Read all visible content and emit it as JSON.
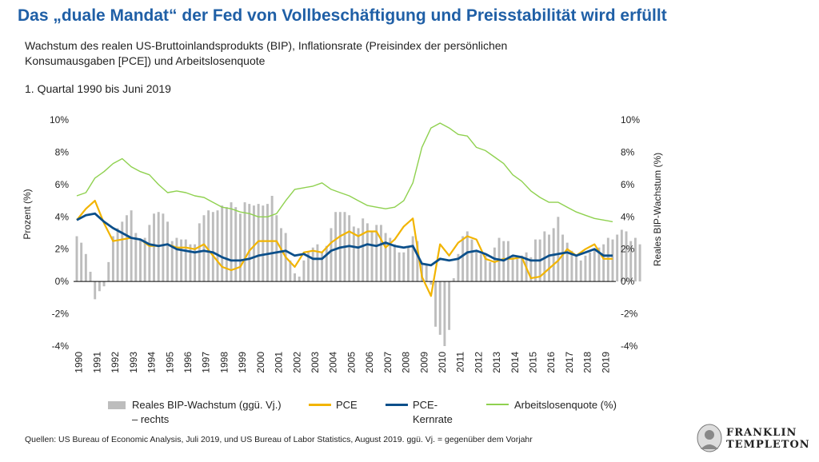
{
  "title": "Das „duale Mandat“ der Fed von Vollbeschäftigung und Preisstabilität wird erfüllt",
  "subtitle": "Wachstum des realen US-Bruttoinlandsprodukts (BIP), Inflationsrate (Preisindex der persönlichen Konsumausgaben [PCE]) und Arbeitslosenquote",
  "period": "1. Quartal 1990 bis Juni 2019",
  "source": "Quellen: US Bureau of Economic Analysis, Juli 2019, und US Bureau of Labor Statistics, August 2019. ggü. Vj. = gegenüber dem Vorjahr",
  "logo": {
    "line1": "FRANKLIN",
    "line2": "TEMPLETON"
  },
  "colors": {
    "title": "#1f5fa6",
    "gdp": "#bdbdbd",
    "pce": "#f2b400",
    "core": "#0b4f8a",
    "unemployment": "#8fd14f"
  },
  "chart_data": {
    "type": "bar+line",
    "ylabel_left": "Prozent (%)",
    "ylabel_right": "Reales BIP-Wachstum (%)",
    "ylim": [
      -4,
      10
    ],
    "yticks": [
      -4,
      -2,
      0,
      2,
      4,
      6,
      8,
      10
    ],
    "ytick_labels_left": [
      "-4%",
      "-2%",
      "0%",
      "2%",
      "4%",
      "6%",
      "8%",
      "10%"
    ],
    "ytick_labels_right": [
      "-4%",
      "-2%",
      "0%",
      "2%",
      "4%",
      "6%",
      "8%",
      "10%"
    ],
    "xlim": [
      1990,
      2019.5
    ],
    "xtick_labels": [
      "1990",
      "1991",
      "1992",
      "1993",
      "1994",
      "1995",
      "1996",
      "1997",
      "1998",
      "1999",
      "2000",
      "2001",
      "2002",
      "2003",
      "2004",
      "2005",
      "2006",
      "2007",
      "2008",
      "2009",
      "2010",
      "2011",
      "2012",
      "2013",
      "2014",
      "2015",
      "2016",
      "2017",
      "2018",
      "2019"
    ],
    "legend": {
      "gdp": "Reales BIP-Wachstum (ggü. Vj.) – rechts",
      "pce": "PCE",
      "core": "PCE-Kernrate",
      "unemployment": "Arbeitslosenquote (%)"
    },
    "gdp_quarterly": {
      "start": 1990.0,
      "step": 0.25,
      "values": [
        2.8,
        2.4,
        1.7,
        0.6,
        -1.1,
        -0.6,
        -0.3,
        1.2,
        2.8,
        3.3,
        3.7,
        4.1,
        4.4,
        3.0,
        2.6,
        2.7,
        3.5,
        4.2,
        4.3,
        4.2,
        3.7,
        2.5,
        2.7,
        2.6,
        2.6,
        2.3,
        2.3,
        3.6,
        4.1,
        4.4,
        4.3,
        4.4,
        4.7,
        4.6,
        4.9,
        4.6,
        4.2,
        4.9,
        4.8,
        4.7,
        4.8,
        4.7,
        4.8,
        5.3,
        4.1,
        3.3,
        3.0,
        1.3,
        0.5,
        0.3,
        1.3,
        1.8,
        2.1,
        2.3,
        1.8,
        2.2,
        3.3,
        4.3,
        4.3,
        4.3,
        4.1,
        3.4,
        3.3,
        3.9,
        3.6,
        3.1,
        3.5,
        3.5,
        3.0,
        2.7,
        2.3,
        1.8,
        1.8,
        2.2,
        2.8,
        2.5,
        1.1,
        1.1,
        -0.2,
        -2.8,
        -3.3,
        -4.0,
        -3.0,
        0.2,
        1.7,
        2.8,
        3.1,
        2.6,
        1.9,
        1.7,
        1.6,
        1.2,
        2.1,
        2.7,
        2.5,
        2.5,
        1.6,
        1.4,
        1.6,
        1.8,
        1.5,
        2.6,
        2.6,
        3.1,
        2.9,
        3.3,
        4.0,
        2.9,
        2.4,
        1.9,
        1.6,
        1.3,
        1.6,
        1.8,
        2.0,
        2.1,
        2.3,
        2.7,
        2.6,
        2.9,
        3.2,
        3.1,
        2.5,
        2.7,
        2.3
      ]
    },
    "series": [
      {
        "name": "PCE",
        "x": [
          1990,
          1990.5,
          1991,
          1991.5,
          1992,
          1992.5,
          1993,
          1993.5,
          1994,
          1994.5,
          1995,
          1995.5,
          1996,
          1996.5,
          1997,
          1997.5,
          1998,
          1998.5,
          1999,
          1999.5,
          2000,
          2000.5,
          2001,
          2001.5,
          2002,
          2002.5,
          2003,
          2003.5,
          2004,
          2004.5,
          2005,
          2005.5,
          2006,
          2006.5,
          2007,
          2007.5,
          2008,
          2008.5,
          2009,
          2009.5,
          2010,
          2010.5,
          2011,
          2011.5,
          2012,
          2012.5,
          2013,
          2013.5,
          2014,
          2014.5,
          2015,
          2015.5,
          2016,
          2016.5,
          2017,
          2017.5,
          2018,
          2018.5,
          2019,
          2019.5
        ],
        "y": [
          3.8,
          4.5,
          5.0,
          3.6,
          2.5,
          2.6,
          2.7,
          2.6,
          2.2,
          2.2,
          2.3,
          2.1,
          2.1,
          2.0,
          2.3,
          1.6,
          0.9,
          0.7,
          0.9,
          1.9,
          2.5,
          2.5,
          2.5,
          1.5,
          0.9,
          1.8,
          1.9,
          1.8,
          2.4,
          2.8,
          3.1,
          2.8,
          3.1,
          3.1,
          2.1,
          2.6,
          3.4,
          3.9,
          0.3,
          -0.9,
          2.3,
          1.6,
          2.4,
          2.8,
          2.6,
          1.4,
          1.2,
          1.4,
          1.4,
          1.5,
          0.2,
          0.3,
          0.8,
          1.3,
          2.0,
          1.6,
          2.0,
          2.3,
          1.4,
          1.4
        ]
      },
      {
        "name": "PCE-Kernrate",
        "x": [
          1990,
          1990.5,
          1991,
          1991.5,
          1992,
          1992.5,
          1993,
          1993.5,
          1994,
          1994.5,
          1995,
          1995.5,
          1996,
          1996.5,
          1997,
          1997.5,
          1998,
          1998.5,
          1999,
          1999.5,
          2000,
          2000.5,
          2001,
          2001.5,
          2002,
          2002.5,
          2003,
          2003.5,
          2004,
          2004.5,
          2005,
          2005.5,
          2006,
          2006.5,
          2007,
          2007.5,
          2008,
          2008.5,
          2009,
          2009.5,
          2010,
          2010.5,
          2011,
          2011.5,
          2012,
          2012.5,
          2013,
          2013.5,
          2014,
          2014.5,
          2015,
          2015.5,
          2016,
          2016.5,
          2017,
          2017.5,
          2018,
          2018.5,
          2019,
          2019.5
        ],
        "y": [
          3.8,
          4.1,
          4.2,
          3.7,
          3.3,
          3.0,
          2.7,
          2.6,
          2.3,
          2.2,
          2.3,
          2.0,
          1.9,
          1.8,
          1.9,
          1.8,
          1.5,
          1.3,
          1.3,
          1.4,
          1.6,
          1.7,
          1.8,
          1.9,
          1.6,
          1.7,
          1.4,
          1.4,
          1.9,
          2.1,
          2.2,
          2.1,
          2.3,
          2.2,
          2.4,
          2.2,
          2.1,
          2.2,
          1.1,
          1.0,
          1.4,
          1.3,
          1.4,
          1.8,
          1.9,
          1.7,
          1.4,
          1.3,
          1.6,
          1.5,
          1.3,
          1.3,
          1.6,
          1.7,
          1.8,
          1.6,
          1.8,
          2.0,
          1.6,
          1.6
        ]
      },
      {
        "name": "Arbeitslosenquote (%)",
        "x": [
          1990,
          1990.5,
          1991,
          1991.5,
          1992,
          1992.5,
          1993,
          1993.5,
          1994,
          1994.5,
          1995,
          1995.5,
          1996,
          1996.5,
          1997,
          1997.5,
          1998,
          1998.5,
          1999,
          1999.5,
          2000,
          2000.5,
          2001,
          2001.5,
          2002,
          2002.5,
          2003,
          2003.5,
          2004,
          2004.5,
          2005,
          2005.5,
          2006,
          2006.5,
          2007,
          2007.5,
          2008,
          2008.5,
          2009,
          2009.5,
          2010,
          2010.5,
          2011,
          2011.5,
          2012,
          2012.5,
          2013,
          2013.5,
          2014,
          2014.5,
          2015,
          2015.5,
          2016,
          2016.5,
          2017,
          2017.5,
          2018,
          2018.5,
          2019,
          2019.5
        ],
        "y": [
          5.3,
          5.5,
          6.4,
          6.8,
          7.3,
          7.6,
          7.1,
          6.8,
          6.6,
          6.0,
          5.5,
          5.6,
          5.5,
          5.3,
          5.2,
          4.9,
          4.6,
          4.5,
          4.3,
          4.2,
          4.0,
          4.0,
          4.2,
          5.0,
          5.7,
          5.8,
          5.9,
          6.1,
          5.7,
          5.5,
          5.3,
          5.0,
          4.7,
          4.6,
          4.5,
          4.6,
          5.0,
          6.1,
          8.3,
          9.5,
          9.8,
          9.5,
          9.1,
          9.0,
          8.3,
          8.1,
          7.7,
          7.3,
          6.6,
          6.2,
          5.6,
          5.2,
          4.9,
          4.9,
          4.6,
          4.3,
          4.1,
          3.9,
          3.8,
          3.7
        ]
      }
    ]
  }
}
